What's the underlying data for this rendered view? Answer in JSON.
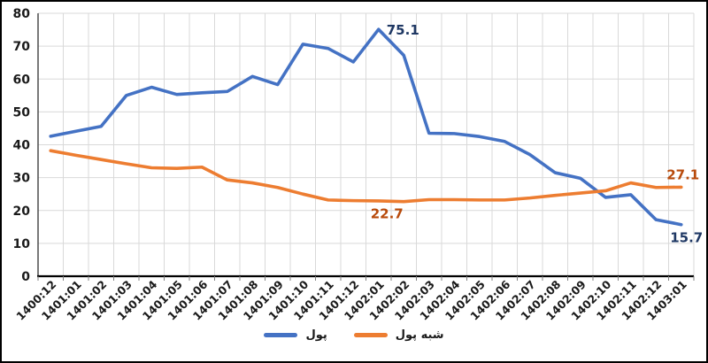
{
  "chart_data": {
    "type": "line",
    "title": "",
    "xlabel": "",
    "ylabel": "",
    "ylim": [
      0,
      80
    ],
    "ytick_step": 10,
    "yticks": [
      "0",
      "10",
      "20",
      "30",
      "40",
      "50",
      "60",
      "70",
      "80"
    ],
    "grid": {
      "horizontal": true,
      "vertical": true,
      "color": "#D9D9D9"
    },
    "axis_color": "#000000",
    "y_axis_line_color": "#404040",
    "tick_label_color": "#1a1a1a",
    "legend_position": "bottom",
    "categories": [
      "1400:12",
      "1401:01",
      "1401:02",
      "1401:03",
      "1401:04",
      "1401:05",
      "1401:06",
      "1401:07",
      "1401:08",
      "1401:09",
      "1401:10",
      "1401:11",
      "1401:12",
      "1402:01",
      "1402:02",
      "1402:03",
      "1402:04",
      "1402:05",
      "1402:06",
      "1402:07",
      "1402:08",
      "1402:09",
      "1402:10",
      "1402:11",
      "1402:12",
      "1403:01"
    ],
    "series": [
      {
        "name": "پول",
        "slug": "money",
        "color": "#4472C4",
        "values": [
          42.6,
          44.1,
          45.6,
          55.0,
          57.5,
          55.3,
          55.8,
          56.2,
          60.8,
          58.3,
          70.6,
          69.3,
          65.2,
          75.1,
          67.2,
          43.5,
          43.4,
          42.5,
          41.0,
          37.0,
          31.5,
          29.8,
          24.0,
          24.8,
          17.2,
          15.7
        ]
      },
      {
        "name": "شبه پول",
        "slug": "quasi-money",
        "color": "#ED7D31",
        "values": [
          38.2,
          36.8,
          35.5,
          34.2,
          33.0,
          32.8,
          33.2,
          29.3,
          28.4,
          27.0,
          25.0,
          23.2,
          23.0,
          22.9,
          22.7,
          23.3,
          23.3,
          23.2,
          23.2,
          23.8,
          24.6,
          25.3,
          26.0,
          28.4,
          27.0,
          27.1
        ]
      }
    ],
    "annotations": [
      {
        "series": 0,
        "category": "1402:01",
        "text": "75.1",
        "placement": "right",
        "color": "#1F3864"
      },
      {
        "series": 0,
        "category": "1403:01",
        "text": "15.7",
        "placement": "below",
        "color": "#1F3864"
      },
      {
        "series": 1,
        "category": "1402:02",
        "text": "22.7",
        "placement": "below-left",
        "color": "#B84A0B"
      },
      {
        "series": 1,
        "category": "1403:01",
        "text": "27.1",
        "placement": "above",
        "color": "#B84A0B"
      }
    ]
  }
}
